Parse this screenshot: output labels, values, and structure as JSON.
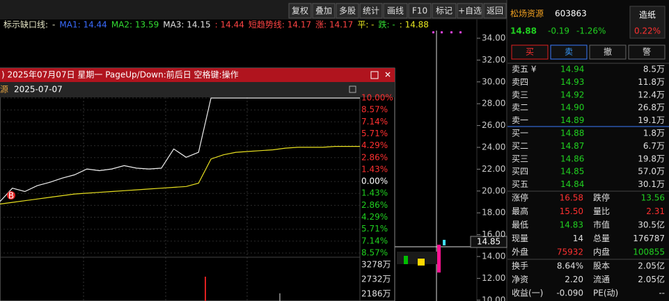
{
  "toolbar": [
    "复权",
    "叠加",
    "多股",
    "统计",
    "画线",
    "F10",
    "标记",
    "+自选",
    "返回"
  ],
  "indicator": [
    {
      "text": "标示缺口线:",
      "color": "#e8e8c8"
    },
    {
      "text": "-",
      "color": "#e8e8c8"
    },
    {
      "text": "MA1: 14.44",
      "color": "#3a6cff"
    },
    {
      "text": "MA2: 13.59",
      "color": "#33dd33"
    },
    {
      "text": "MA3: 14.15",
      "color": "#e0e0e0"
    },
    {
      "text": ": 14.44",
      "color": "#ff4444"
    },
    {
      "text": "短趋势线: 14.17",
      "color": "#ff4444"
    },
    {
      "text": "涨: 14.17",
      "color": "#ff4444"
    },
    {
      "text": "平: -",
      "color": "#e8e820"
    },
    {
      "text": "跌: -",
      "color": "#33dd33"
    },
    {
      "text": ": 14.88",
      "color": "#e8e820"
    }
  ],
  "price_axis": [
    "34.00",
    "32.00",
    "30.00",
    "28.00",
    "26.00",
    "24.00",
    "22.00",
    "20.00",
    "18.00",
    "16.00",
    "14.00",
    "12.00",
    "10.00"
  ],
  "cursor_price": "14.85",
  "popup": {
    "title": ") 2025年07月07日 星期一 PageUp/Down:前后日 空格键:操作",
    "name_fragment": "源",
    "date": "2025-07-07",
    "pct_ticks": [
      "10.00%",
      "8.57%",
      "7.14%",
      "5.71%",
      "4.29%",
      "2.86%",
      "1.43%",
      "0.00%",
      "1.43%",
      "2.86%",
      "4.29%",
      "5.71%",
      "7.14%",
      "8.57%"
    ],
    "volume_ticks": [
      "3278万",
      "2732万",
      "2186万"
    ],
    "marker": "B",
    "intraday": {
      "ylim": [
        -8.57,
        10.0
      ],
      "price": [
        -2.4,
        -0.8,
        -1.2,
        -0.5,
        -0.1,
        0.4,
        0.8,
        1.5,
        1.3,
        1.5,
        1.9,
        1.6,
        1.5,
        1.6,
        3.9,
        2.9,
        3.5,
        10.0,
        10.0,
        10.0,
        10.0,
        10.0,
        10.0,
        10.0,
        10.0,
        10.0,
        10.0,
        10.0,
        10.0,
        10.0
      ],
      "average": [
        -2.7,
        -2.5,
        -2.3,
        -2.1,
        -1.9,
        -1.7,
        -1.5,
        -1.4,
        -1.3,
        -1.2,
        -1.1,
        -1.0,
        -0.9,
        -0.8,
        -0.7,
        -0.6,
        -0.2,
        2.7,
        3.2,
        3.5,
        3.6,
        3.7,
        3.8,
        4.0,
        4.1,
        4.1,
        4.1,
        4.2,
        4.2,
        4.2
      ]
    }
  },
  "quote": {
    "name": "松炀资源",
    "code": "603863",
    "sector": "造纸",
    "sector_change": "0.22%",
    "price": "14.88",
    "change": "-0.19",
    "change_pct": "-1.26%"
  },
  "buttons": [
    "买",
    "卖",
    "撤",
    "警"
  ],
  "sell": [
    {
      "label": "卖五 ¥",
      "price": "14.94",
      "volume": "8.5万"
    },
    {
      "label": "卖四",
      "price": "14.93",
      "volume": "11.8万"
    },
    {
      "label": "卖三",
      "price": "14.92",
      "volume": "12.4万"
    },
    {
      "label": "卖二",
      "price": "14.90",
      "volume": "26.8万"
    },
    {
      "label": "卖一",
      "price": "14.89",
      "volume": "19.1万"
    }
  ],
  "buy": [
    {
      "label": "买一",
      "price": "14.88",
      "volume": "1.8万"
    },
    {
      "label": "买二",
      "price": "14.87",
      "volume": "6.7万"
    },
    {
      "label": "买三",
      "price": "14.86",
      "volume": "19.8万"
    },
    {
      "label": "买四",
      "price": "14.85",
      "volume": "57.0万"
    },
    {
      "label": "买五",
      "price": "14.84",
      "volume": "30.1万"
    }
  ],
  "stats": [
    [
      "涨停",
      "16.58",
      "跌停",
      "13.56"
    ],
    [
      "最高",
      "15.50",
      "量比",
      "2.31"
    ],
    [
      "最低",
      "14.83",
      "市值",
      "30.5亿"
    ],
    [
      "现量",
      "14",
      "总量",
      "176787"
    ],
    [
      "外盘",
      "75932",
      "内盘",
      "100855"
    ],
    [
      "换手",
      "8.64%",
      "股本",
      "2.05亿"
    ],
    [
      "净资",
      "2.20",
      "流通",
      "2.05亿"
    ],
    [
      "收益(一)",
      "-0.090",
      "PE(动)",
      "--"
    ]
  ]
}
